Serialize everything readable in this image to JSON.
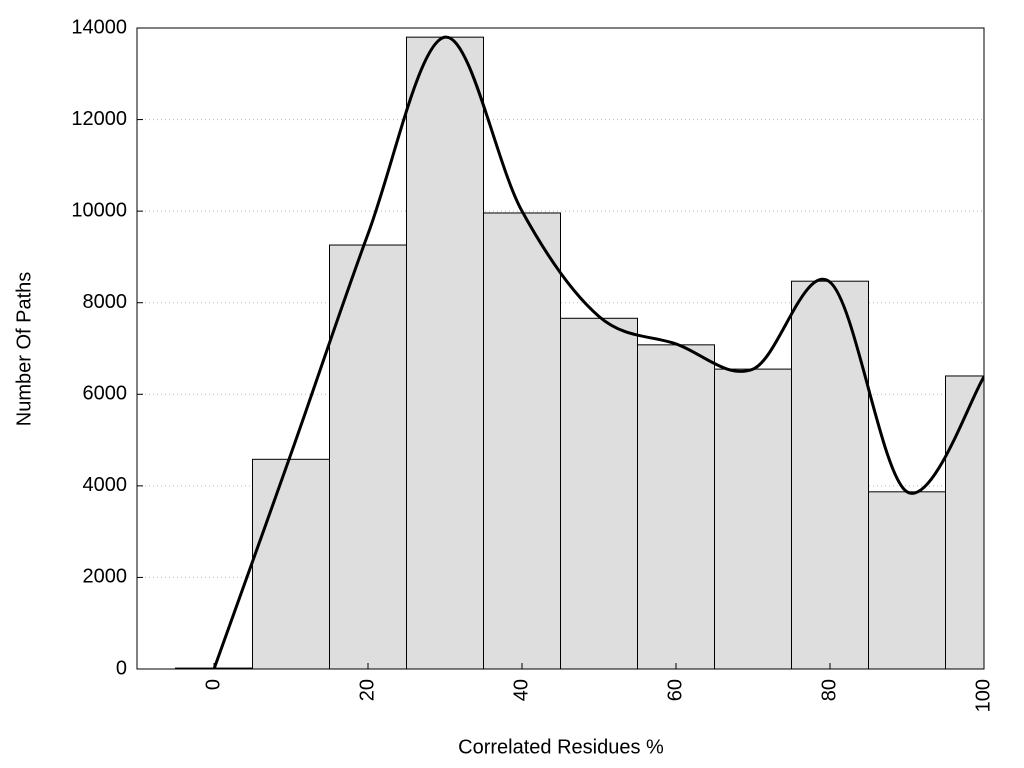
{
  "chart_data": {
    "type": "histogram",
    "x_label": "Correlated Residues %",
    "y_label": "Number Of Paths",
    "bins": [
      -5,
      5,
      15,
      25,
      35,
      45,
      55,
      65,
      75,
      85,
      95,
      105
    ],
    "values": [
      20,
      4580,
      9260,
      13800,
      9960,
      7660,
      7080,
      6550,
      8470,
      3870,
      6400
    ],
    "color": "#dedede",
    "line": {
      "x": [
        0,
        10,
        20,
        30,
        40,
        50,
        60,
        70,
        80,
        90,
        100
      ],
      "values": [
        0,
        4700,
        9500,
        13800,
        10000,
        7700,
        7100,
        6550,
        8450,
        3870,
        6380
      ],
      "color": "#000000"
    },
    "xlim": [
      -10,
      100
    ],
    "xticks": [
      0,
      20,
      40,
      60,
      80,
      100
    ],
    "ylim": [
      0,
      14000
    ],
    "yticks": [
      0,
      2000,
      4000,
      6000,
      8000,
      10000,
      12000,
      14000
    ],
    "grid": true
  }
}
